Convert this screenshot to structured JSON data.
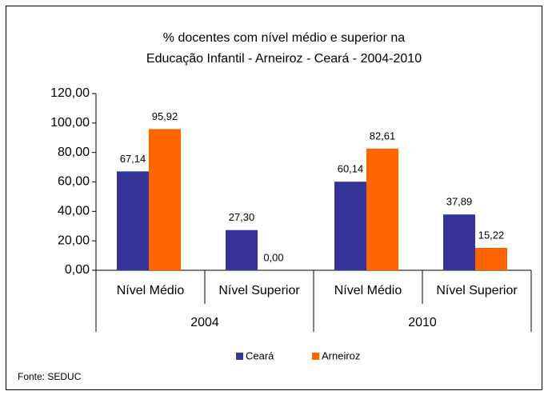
{
  "chart_data": {
    "type": "bar",
    "title": [
      "% docentes com nível médio e superior na",
      "Educação Infantil - Arneiroz -  Ceará - 2004-2010"
    ],
    "categories": [
      "Nível Médio",
      "Nível Superior",
      "Nível Médio",
      "Nível Superior"
    ],
    "groups": [
      "2004",
      "2010"
    ],
    "series": [
      {
        "name": "Ceará",
        "color": "#333399",
        "values": [
          67.14,
          27.3,
          60.14,
          37.89
        ],
        "value_labels": [
          "67,14",
          "27,30",
          "60,14",
          "37,89"
        ]
      },
      {
        "name": "Arneiroz",
        "color": "#FF6600",
        "values": [
          95.92,
          0.0,
          82.61,
          15.22
        ],
        "value_labels": [
          "95,92",
          "0,00",
          "82,61",
          "15,22"
        ]
      }
    ],
    "ylim": [
      0,
      120
    ],
    "yticks": [
      {
        "value": 0,
        "label": "0,00"
      },
      {
        "value": 20,
        "label": "20,00"
      },
      {
        "value": 40,
        "label": "40,00"
      },
      {
        "value": 60,
        "label": "60,00"
      },
      {
        "value": 80,
        "label": "80,00"
      },
      {
        "value": 100,
        "label": "100,00"
      },
      {
        "value": 120,
        "label": "120,00"
      }
    ],
    "source": "Fonte: SEDUC"
  }
}
